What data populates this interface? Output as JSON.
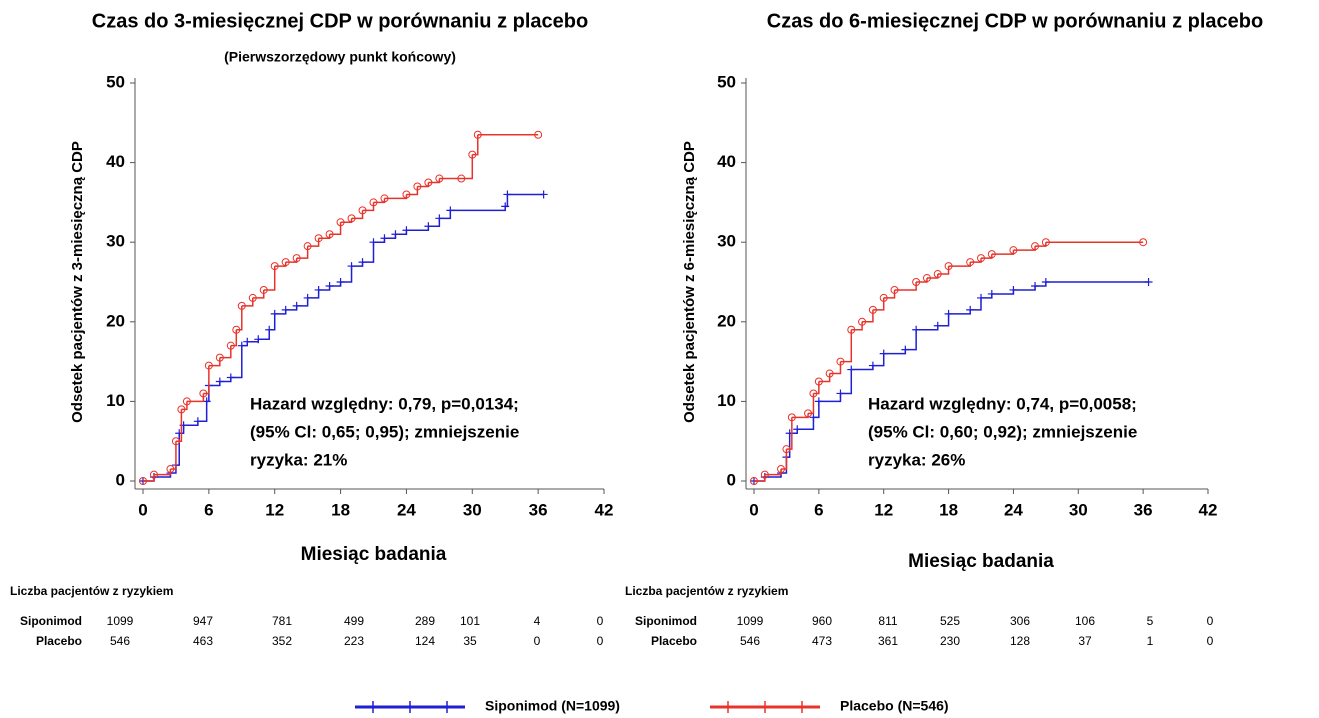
{
  "chart_data": [
    {
      "type": "step",
      "title": "Czas do 3-miesięcznej CDP w porównaniu z placebo",
      "subtitle": "(Pierwszorzędowy punkt końcowy)",
      "x_label": "Miesiąc badania",
      "y_label": "Odsetek pacjentów z 3-miesięczną CDP",
      "xlim": [
        0,
        42
      ],
      "xticks": [
        0,
        6,
        12,
        18,
        24,
        30,
        36,
        42
      ],
      "ylim": [
        0,
        50
      ],
      "yticks": [
        0,
        10,
        20,
        30,
        40,
        50
      ],
      "annotation": [
        "Hazard względny: 0,79, p=0,0134;",
        "(95% Cl: 0,65; 0,95); zmniejszenie",
        "ryzyka: 21%"
      ],
      "series": [
        {
          "name": "Siponimod (N=1099)",
          "color": "#1f1fd6",
          "marker": "plus",
          "x": [
            0,
            1,
            2.5,
            3,
            3.3,
            3.7,
            5,
            5.8,
            6,
            7,
            8,
            9,
            9.5,
            10.5,
            11.5,
            12,
            13,
            14,
            15,
            16,
            17,
            18,
            19,
            20,
            21,
            22,
            23,
            24,
            26,
            27,
            28,
            33,
            33.2,
            36.5
          ],
          "values": [
            0,
            0.5,
            1,
            2,
            6,
            7,
            7.5,
            10,
            12,
            12.5,
            13,
            17,
            17.5,
            17.8,
            19,
            21,
            21.5,
            22,
            23,
            24,
            24.5,
            25,
            27,
            27.5,
            30,
            30.5,
            31,
            31.5,
            32,
            33,
            34,
            34.5,
            36,
            36
          ]
        },
        {
          "name": "Placebo (N=546)",
          "color": "#e8332a",
          "marker": "circle",
          "x": [
            0,
            1,
            2.5,
            3,
            3.5,
            4,
            5.5,
            6,
            7,
            8,
            8.5,
            9,
            10,
            11,
            12,
            13,
            14,
            15,
            16,
            17,
            18,
            19,
            20,
            21,
            22,
            24,
            25,
            26,
            27,
            29,
            30,
            30.5,
            36
          ],
          "values": [
            0,
            0.8,
            1.5,
            5,
            9,
            10,
            11,
            14.5,
            15.5,
            17,
            19,
            22,
            23,
            24,
            27,
            27.5,
            28,
            29.5,
            30.5,
            31,
            32.5,
            33,
            34,
            35,
            35.5,
            36,
            37,
            37.5,
            38,
            38,
            41,
            43.5,
            43.5
          ]
        }
      ],
      "at_risk": {
        "title": "Liczba pacjentów z ryzykiem",
        "rows": [
          {
            "name": "Siponimod",
            "values": [
              1099,
              947,
              781,
              499,
              289,
              101,
              4,
              0
            ]
          },
          {
            "name": "Placebo",
            "values": [
              546,
              463,
              352,
              223,
              124,
              35,
              0,
              0
            ]
          }
        ]
      }
    },
    {
      "type": "step",
      "title": "Czas do 6-miesięcznej CDP w porównaniu z placebo",
      "x_label": "Miesiąc badania",
      "y_label": "Odsetek pacjentów z 6-miesięczną CDP",
      "xlim": [
        0,
        42
      ],
      "xticks": [
        0,
        6,
        12,
        18,
        24,
        30,
        36,
        42
      ],
      "ylim": [
        0,
        50
      ],
      "yticks": [
        0,
        10,
        20,
        30,
        40,
        50
      ],
      "annotation": [
        "Hazard względny: 0,74, p=0,0058;",
        "(95% Cl: 0,60; 0,92); zmniejszenie",
        "ryzyka: 26%"
      ],
      "series": [
        {
          "color": "#1f1fd6",
          "marker": "plus",
          "x": [
            0,
            1,
            2.5,
            3,
            3.3,
            4,
            5.5,
            6,
            8,
            9,
            11,
            12,
            14,
            15,
            17,
            18,
            20,
            21,
            22,
            24,
            26,
            27,
            36.5
          ],
          "values": [
            0,
            0.5,
            1,
            3,
            6,
            6.5,
            8,
            10,
            11,
            14,
            14.5,
            16,
            16.5,
            19,
            19.5,
            21,
            21.5,
            23,
            23.5,
            24,
            24.5,
            25,
            25
          ]
        },
        {
          "color": "#e8332a",
          "marker": "circle",
          "x": [
            0,
            1,
            2.5,
            3,
            3.5,
            5,
            5.5,
            6,
            7,
            8,
            9,
            10,
            11,
            12,
            13,
            15,
            16,
            17,
            18,
            20,
            21,
            22,
            24,
            26,
            27,
            36
          ],
          "values": [
            0,
            0.8,
            1.5,
            4,
            8,
            8.5,
            11,
            12.5,
            13.5,
            15,
            19,
            20,
            21.5,
            23,
            24,
            25,
            25.5,
            26,
            27,
            27.5,
            28,
            28.5,
            29,
            29.5,
            30,
            30
          ]
        }
      ],
      "at_risk": {
        "title": "Liczba pacjentów z ryzykiem",
        "rows": [
          {
            "name": "Siponimod",
            "values": [
              1099,
              960,
              811,
              525,
              306,
              106,
              5,
              0
            ]
          },
          {
            "name": "Placebo",
            "values": [
              546,
              473,
              361,
              230,
              128,
              37,
              1,
              0
            ]
          }
        ]
      }
    }
  ]
}
